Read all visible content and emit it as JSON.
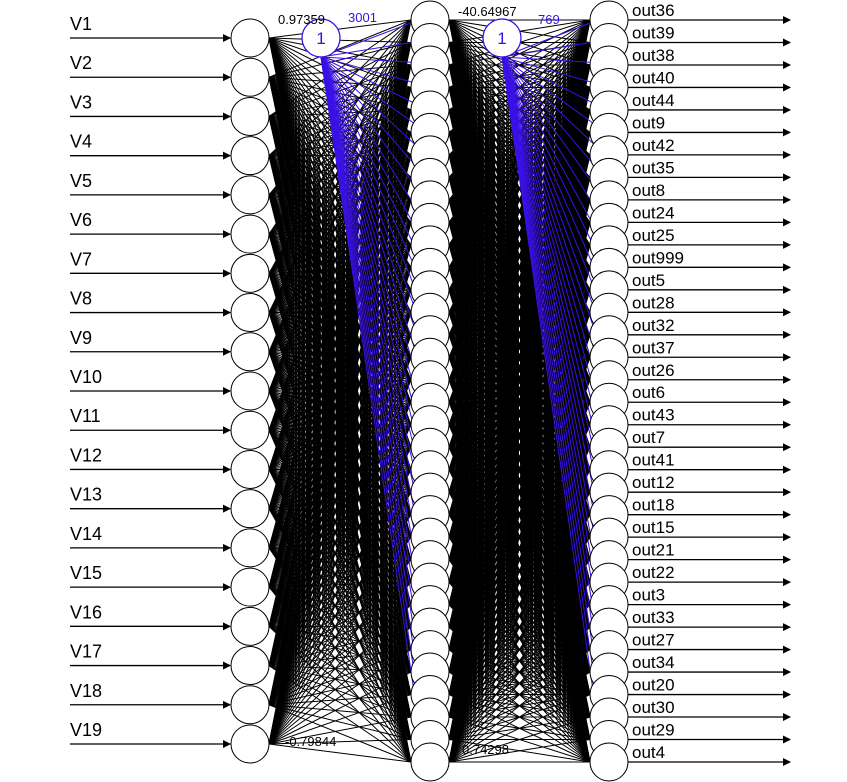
{
  "inputs": [
    "V1",
    "V2",
    "V3",
    "V4",
    "V5",
    "V6",
    "V7",
    "V8",
    "V9",
    "V10",
    "V11",
    "V12",
    "V13",
    "V14",
    "V15",
    "V16",
    "V17",
    "V18",
    "V19"
  ],
  "outputs": [
    "out36",
    "out39",
    "out38",
    "out40",
    "out44",
    "out9",
    "out42",
    "out35",
    "out8",
    "out24",
    "out25",
    "out999",
    "out5",
    "out28",
    "out32",
    "out37",
    "out26",
    "out6",
    "out43",
    "out7",
    "out41",
    "out12",
    "out18",
    "out15",
    "out21",
    "out22",
    "out3",
    "out33",
    "out27",
    "out34",
    "out20",
    "out30",
    "out29",
    "out4"
  ],
  "hidden_count": 34,
  "bias_nodes": [
    {
      "label": "1"
    },
    {
      "label": "1"
    }
  ],
  "weight_labels": {
    "layer1_top": "0.97359",
    "layer1_bottom": "-0.79844",
    "layer2_top": "-40.64967",
    "layer2_bottom": "0.74298",
    "bias1_top": "3001",
    "bias2_top": "769"
  },
  "colors": {
    "edge": "#000000",
    "bias_edge": "#3a10e6",
    "node_fill": "#ffffff",
    "node_stroke": "#000000"
  }
}
